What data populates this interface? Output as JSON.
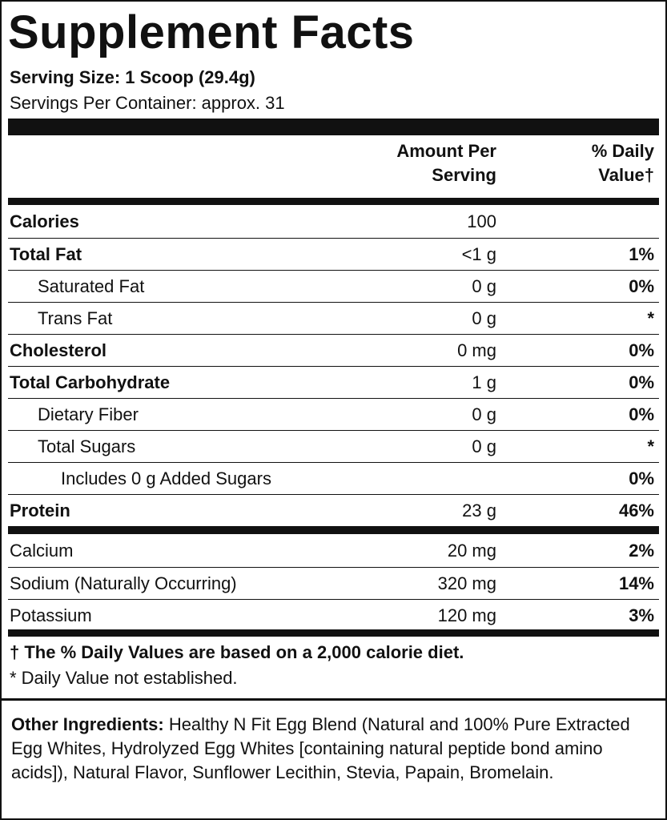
{
  "title": "Supplement Facts",
  "serving_size": "Serving Size: 1 Scoop (29.4g)",
  "servings_per_container": "Servings Per Container: approx. 31",
  "header": {
    "amount": "Amount Per Serving",
    "daily_value": "% Daily Value†"
  },
  "rows": [
    {
      "name": "Calories",
      "amount": "100"
    },
    {
      "name": "Total Fat",
      "amount": "<1 g",
      "dv": "1%",
      "sub": [
        {
          "name": "Saturated Fat",
          "amount": "0 g",
          "dv": "0%"
        },
        {
          "name": "Trans Fat",
          "amount": "0 g",
          "dv": "*"
        }
      ]
    },
    {
      "name": "Cholesterol",
      "amount": "0 mg",
      "dv": "0%"
    },
    {
      "name": "Total Carbohydrate",
      "amount": "1 g",
      "dv": "0%",
      "sub": [
        {
          "name": "Dietary Fiber",
          "amount": "0 g",
          "dv": "0%"
        },
        {
          "name": "Total Sugars",
          "amount": "0 g",
          "dv": "*",
          "sub": [
            {
              "name": "Includes 0 g Added Sugars",
              "dv": "0%"
            }
          ]
        }
      ]
    },
    {
      "name": "Protein",
      "amount": "23 g",
      "dv": "46%"
    }
  ],
  "minerals": [
    {
      "name": "Calcium",
      "amount": "20 mg",
      "dv": "2%"
    },
    {
      "name": "Sodium (Naturally Occurring)",
      "amount": "320 mg",
      "dv": "14%"
    },
    {
      "name": "Potassium",
      "amount": "120 mg",
      "dv": "3%"
    }
  ],
  "footnotes": [
    "† The % Daily Values are based on a 2,000 calorie diet.",
    "* Daily Value not established."
  ],
  "ingredients": {
    "label": "Other Ingredients:",
    "text": "Healthy N Fit Egg Blend (Natural and 100% Pure Extracted Egg Whites, Hydrolyzed Egg Whites [containing natural peptide bond amino acids]), Natural Flavor, Sunflower Lecithin, Stevia, Papain, Bromelain."
  }
}
